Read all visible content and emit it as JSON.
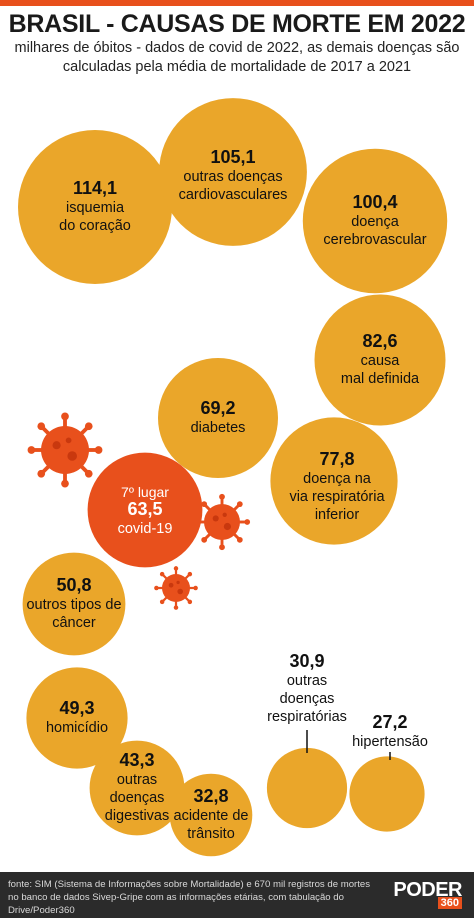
{
  "header": {
    "title": "BRASIL - CAUSAS DE MORTE EM 2022",
    "subtitle_line1": "milhares de óbitos - dados de covid de 2022, as demais doenças são",
    "subtitle_line2": "calculadas pela média de mortalidade de 2017 a 2021"
  },
  "colors": {
    "accent": "#e8501c",
    "bubble": "#eaa62a",
    "covid": "#e8501c",
    "footer": "#2b2b2b"
  },
  "icons": [
    "coronavirus-icon"
  ],
  "chart_data": {
    "type": "bubble",
    "title": "BRASIL - CAUSAS DE MORTE EM 2022",
    "unit": "milhares de óbitos",
    "items": [
      {
        "value": "114,1",
        "num": 114.1,
        "label": [
          "isquemia",
          "do coração"
        ]
      },
      {
        "value": "105,1",
        "num": 105.1,
        "label": [
          "outras doenças",
          "cardiovasculares"
        ]
      },
      {
        "value": "100,4",
        "num": 100.4,
        "label": [
          "doença",
          "cerebrovascular"
        ]
      },
      {
        "value": "82,6",
        "num": 82.6,
        "label": [
          "causa",
          "mal definida"
        ]
      },
      {
        "value": "77,8",
        "num": 77.8,
        "label": [
          "doença na",
          "via respiratória",
          "inferior"
        ]
      },
      {
        "value": "69,2",
        "num": 69.2,
        "label": [
          "diabetes"
        ]
      },
      {
        "value": "63,5",
        "num": 63.5,
        "label": [
          "covid-19"
        ],
        "rank": "7º lugar",
        "highlight": true
      },
      {
        "value": "50,8",
        "num": 50.8,
        "label": [
          "outros tipos de",
          "câncer"
        ]
      },
      {
        "value": "49,3",
        "num": 49.3,
        "label": [
          "homicídio"
        ]
      },
      {
        "value": "43,3",
        "num": 43.3,
        "label": [
          "outras",
          "doenças",
          "digestivas"
        ]
      },
      {
        "value": "32,8",
        "num": 32.8,
        "label": [
          "acidente de",
          "trânsito"
        ]
      },
      {
        "value": "30,9",
        "num": 30.9,
        "label": [
          "outras",
          "doenças",
          "respiratórias"
        ],
        "callout": true
      },
      {
        "value": "27,2",
        "num": 27.2,
        "label": [
          "hipertensão"
        ],
        "callout": true
      }
    ]
  },
  "footer": {
    "source_line1": "fonte:  SIM (Sistema de Informações sobre Mortalidade) e 670 mil registros de mortes",
    "source_line2": "no banco de dados Sivep-Gripe com as informações etárias, com tabulação do",
    "source_line3": "Drive/Poder360",
    "logo_main": "PODER",
    "logo_sub": "360"
  }
}
